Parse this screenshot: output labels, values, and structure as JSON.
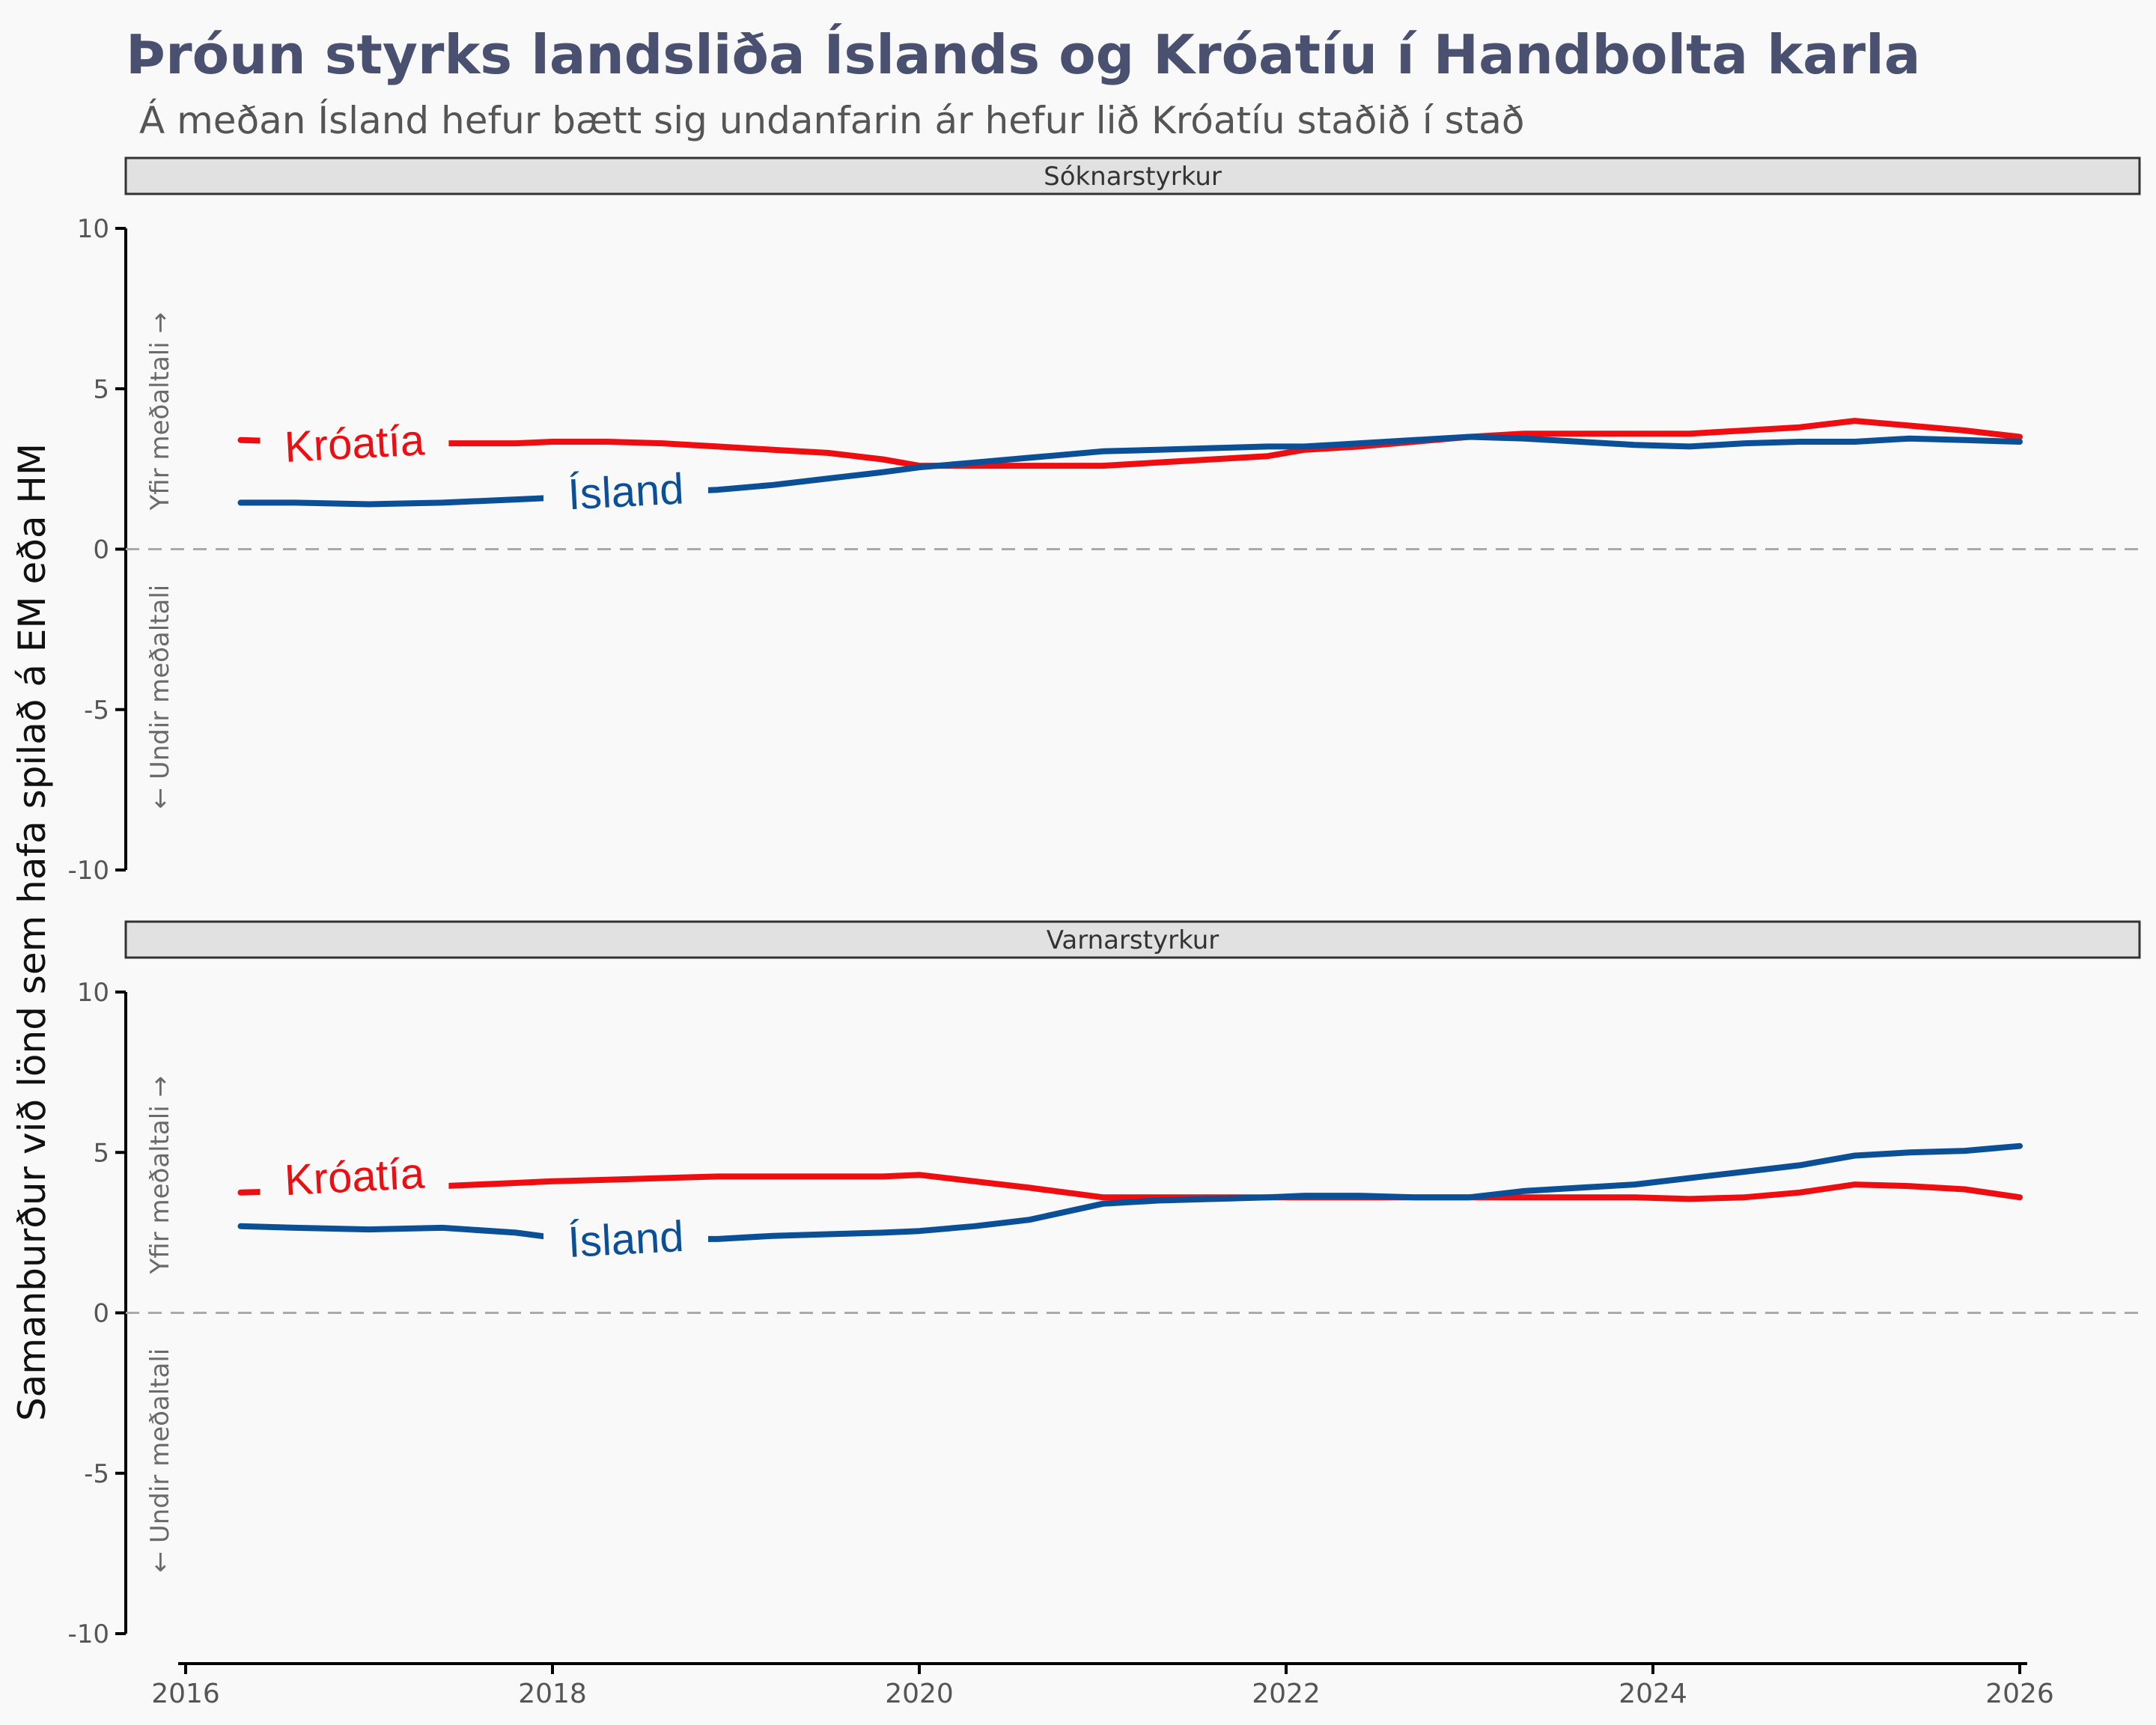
{
  "title": "Þróun styrks landsliða Íslands og Króatíu í Handbolta karla",
  "subtitle": "Á meðan Ísland hefur bætt sig undanfarin ár hefur lið Króatíu staðið í stað",
  "y_axis_label": "Samanburður við lönd sem hafa spilað á EM eða HM",
  "above_note": "Yfir meðaltali →",
  "below_note": "← Undir meðaltali",
  "colors": {
    "iceland": "#0b4f97",
    "croatia": "#ee0d10",
    "zero_line": "#aaaaaa",
    "strip_bg": "#e1e1e1",
    "background": "#f9f9f9"
  },
  "chart_data": {
    "type": "line",
    "xlim": [
      2016,
      2026
    ],
    "x_ticks": [
      "2016",
      "2018",
      "2020",
      "2022",
      "2024",
      "2026"
    ],
    "ylim": [
      -10,
      10
    ],
    "y_ticks": [
      "-10",
      "-5",
      "0",
      "5",
      "10"
    ],
    "panels": [
      {
        "name": "Sóknarstyrkur",
        "series": [
          {
            "name": "Króatía",
            "color": "#ee0d10",
            "label_at": [
              2016.92,
              3.3
            ],
            "x": [
              2016.3,
              2016.6,
              2017.0,
              2017.4,
              2017.8,
              2018.0,
              2018.3,
              2018.6,
              2018.9,
              2019.2,
              2019.5,
              2019.8,
              2020.0,
              2020.3,
              2020.6,
              2021.0,
              2021.3,
              2021.6,
              2021.9,
              2022.1,
              2022.4,
              2022.7,
              2023.0,
              2023.3,
              2023.6,
              2023.9,
              2024.2,
              2024.5,
              2024.8,
              2025.1,
              2025.4,
              2025.7,
              2026.0
            ],
            "y": [
              3.4,
              3.35,
              3.3,
              3.3,
              3.3,
              3.35,
              3.35,
              3.3,
              3.2,
              3.1,
              3.0,
              2.8,
              2.6,
              2.6,
              2.6,
              2.6,
              2.7,
              2.8,
              2.9,
              3.1,
              3.2,
              3.35,
              3.5,
              3.6,
              3.6,
              3.6,
              3.6,
              3.7,
              3.8,
              4.0,
              3.85,
              3.7,
              3.5
            ]
          },
          {
            "name": "Ísland",
            "color": "#0b4f97",
            "label_at": [
              2018.4,
              1.8
            ],
            "x": [
              2016.3,
              2016.6,
              2017.0,
              2017.4,
              2017.8,
              2018.0,
              2018.3,
              2018.6,
              2018.9,
              2019.2,
              2019.5,
              2019.8,
              2020.0,
              2020.3,
              2020.6,
              2021.0,
              2021.3,
              2021.6,
              2021.9,
              2022.1,
              2022.4,
              2022.7,
              2023.0,
              2023.3,
              2023.6,
              2023.9,
              2024.2,
              2024.5,
              2024.8,
              2025.1,
              2025.4,
              2025.7,
              2026.0
            ],
            "y": [
              1.45,
              1.45,
              1.4,
              1.45,
              1.55,
              1.6,
              1.7,
              1.78,
              1.85,
              2.0,
              2.2,
              2.4,
              2.55,
              2.7,
              2.85,
              3.05,
              3.1,
              3.15,
              3.2,
              3.2,
              3.3,
              3.4,
              3.5,
              3.45,
              3.35,
              3.25,
              3.2,
              3.3,
              3.35,
              3.35,
              3.45,
              3.4,
              3.35
            ]
          }
        ]
      },
      {
        "name": "Varnarstyrkur",
        "series": [
          {
            "name": "Króatía",
            "color": "#ee0d10",
            "label_at": [
              2016.92,
              4.25
            ],
            "x": [
              2016.3,
              2016.6,
              2017.0,
              2017.4,
              2017.8,
              2018.0,
              2018.3,
              2018.6,
              2018.9,
              2019.2,
              2019.5,
              2019.8,
              2020.0,
              2020.3,
              2020.6,
              2021.0,
              2021.3,
              2021.6,
              2021.9,
              2022.1,
              2022.4,
              2022.7,
              2023.0,
              2023.3,
              2023.6,
              2023.9,
              2024.2,
              2024.5,
              2024.8,
              2025.1,
              2025.4,
              2025.7,
              2026.0
            ],
            "y": [
              3.75,
              3.8,
              3.85,
              3.95,
              4.05,
              4.1,
              4.15,
              4.2,
              4.25,
              4.25,
              4.25,
              4.25,
              4.3,
              4.1,
              3.9,
              3.6,
              3.6,
              3.6,
              3.6,
              3.6,
              3.6,
              3.6,
              3.6,
              3.6,
              3.6,
              3.6,
              3.55,
              3.6,
              3.75,
              4.0,
              3.95,
              3.85,
              3.6
            ]
          },
          {
            "name": "Ísland",
            "color": "#0b4f97",
            "label_at": [
              2018.4,
              2.3
            ],
            "x": [
              2016.3,
              2016.6,
              2017.0,
              2017.4,
              2017.8,
              2018.0,
              2018.3,
              2018.6,
              2018.9,
              2019.2,
              2019.5,
              2019.8,
              2020.0,
              2020.3,
              2020.6,
              2021.0,
              2021.3,
              2021.6,
              2021.9,
              2022.1,
              2022.4,
              2022.7,
              2023.0,
              2023.3,
              2023.6,
              2023.9,
              2024.2,
              2024.5,
              2024.8,
              2025.1,
              2025.4,
              2025.7,
              2026.0
            ],
            "y": [
              2.7,
              2.65,
              2.6,
              2.65,
              2.5,
              2.35,
              2.3,
              2.3,
              2.3,
              2.4,
              2.45,
              2.5,
              2.55,
              2.7,
              2.9,
              3.4,
              3.5,
              3.55,
              3.6,
              3.65,
              3.65,
              3.6,
              3.6,
              3.8,
              3.9,
              4.0,
              4.2,
              4.4,
              4.6,
              4.9,
              5.0,
              5.05,
              5.2
            ]
          }
        ]
      }
    ]
  }
}
